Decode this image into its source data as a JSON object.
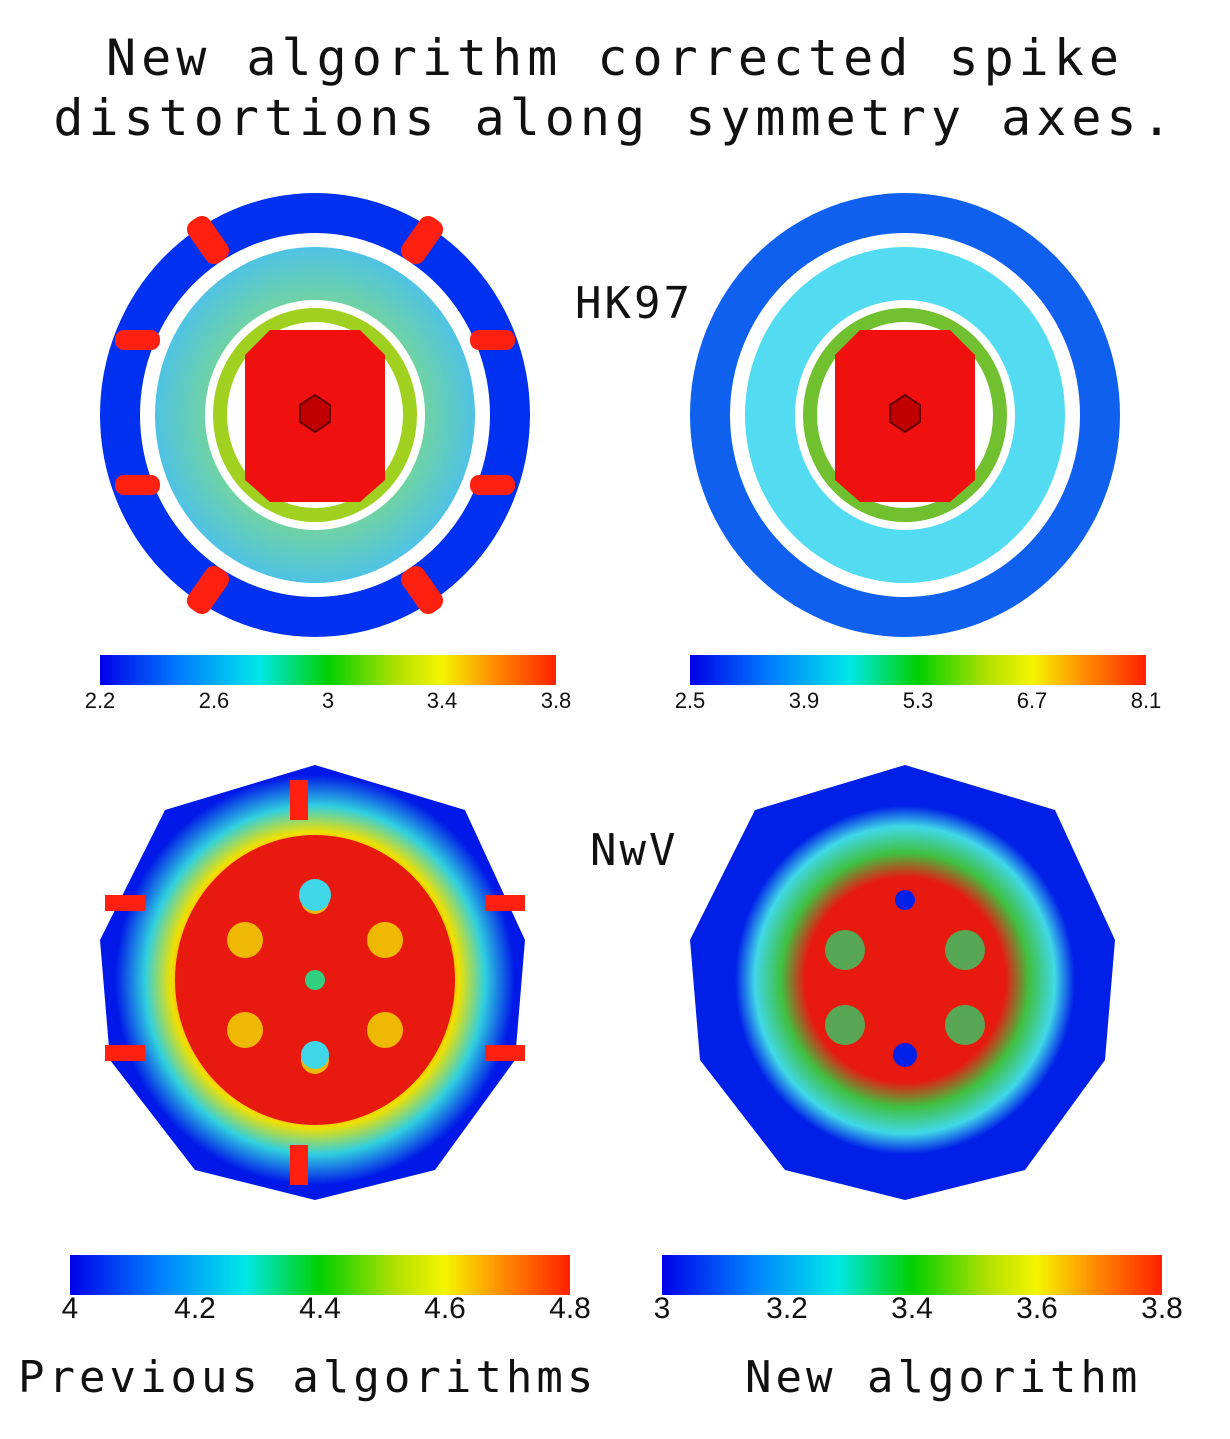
{
  "title": [
    "New algorithm corrected spike",
    "distortions along symmetry axes."
  ],
  "rows": [
    {
      "label": "HK97",
      "colorbars": [
        {
          "ticks": [
            "2.2",
            "2.6",
            "3",
            "3.4",
            "3.8"
          ]
        },
        {
          "ticks": [
            "2.5",
            "3.9",
            "5.3",
            "6.7",
            "8.1"
          ]
        }
      ]
    },
    {
      "label": "NwV",
      "colorbars": [
        {
          "ticks": [
            "4",
            "4.2",
            "4.4",
            "4.6",
            "4.8"
          ]
        },
        {
          "ticks": [
            "3",
            "3.2",
            "3.4",
            "3.6",
            "3.8"
          ]
        }
      ]
    }
  ],
  "columns": [
    "Previous algorithms",
    "New algorithm"
  ],
  "colors": {
    "low": "#0000e8",
    "mid": "#00d000",
    "high": "#ff2000",
    "background": "#ffffff"
  }
}
